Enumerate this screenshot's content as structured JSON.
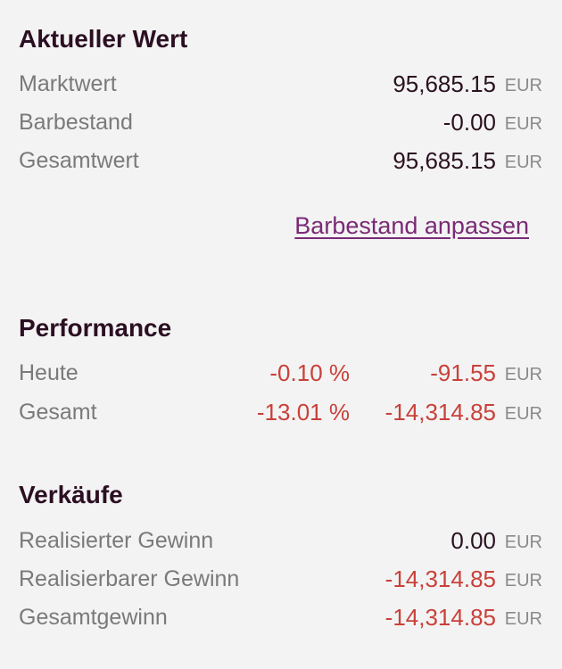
{
  "current_value": {
    "title": "Aktueller Wert",
    "rows": [
      {
        "label": "Marktwert",
        "value": "95,685.15",
        "unit": "EUR"
      },
      {
        "label": "Barbestand",
        "value": "-0.00",
        "unit": "EUR"
      },
      {
        "label": "Gesamtwert",
        "value": "95,685.15",
        "unit": "EUR"
      }
    ],
    "adjust_cash_link": "Barbestand anpassen"
  },
  "performance": {
    "title": "Performance",
    "rows": [
      {
        "label": "Heute",
        "percent": "-0.10 %",
        "value": "-91.55",
        "unit": "EUR"
      },
      {
        "label": "Gesamt",
        "percent": "-13.01 %",
        "value": "-14,314.85",
        "unit": "EUR"
      }
    ]
  },
  "sales": {
    "title": "Verkäufe",
    "rows": [
      {
        "label": "Realisierter Gewinn",
        "value": "0.00",
        "unit": "EUR"
      },
      {
        "label": "Realisierbarer Gewinn",
        "value": "-14,314.85",
        "unit": "EUR"
      },
      {
        "label": "Gesamtgewinn",
        "value": "-14,314.85",
        "unit": "EUR"
      }
    ]
  },
  "colors": {
    "background": "#f3f3f3",
    "heading": "#2b0f22",
    "label": "#7a7a7a",
    "negative": "#c9413a",
    "link": "#7a2a76"
  }
}
